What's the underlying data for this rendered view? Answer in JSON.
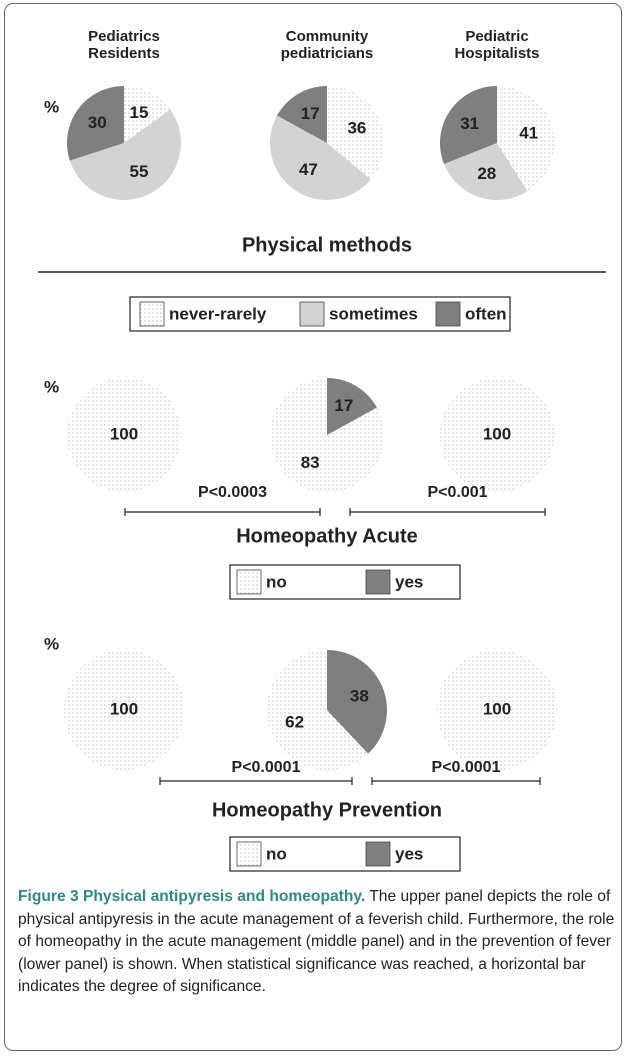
{
  "chart_data": [
    {
      "type": "pie",
      "title": "Physical methods",
      "y_label": "%",
      "categories": [
        "Pediatrics Residents",
        "Community pediatricians",
        "Pediatric Hospitalists"
      ],
      "direction": "clockwise",
      "series": [
        {
          "name": "never-rarely",
          "color": "#ffffff",
          "pattern": "dots",
          "values": [
            15,
            36,
            41
          ]
        },
        {
          "name": "sometimes",
          "color": "#d3d3d3",
          "values": [
            55,
            47,
            28
          ]
        },
        {
          "name": "often",
          "color": "#7f7f7f",
          "values": [
            30,
            17,
            31
          ]
        }
      ]
    },
    {
      "type": "pie",
      "title": "Homeopathy Acute",
      "y_label": "%",
      "direction": "counterclockwise",
      "series": [
        {
          "name": "no",
          "color": "#ffffff",
          "pattern": "dots",
          "values": [
            100,
            83,
            100
          ]
        },
        {
          "name": "yes",
          "color": "#7f7f7f",
          "values": [
            0,
            17,
            0
          ]
        }
      ],
      "annotations": [
        "P<0.0003",
        "P<0.001"
      ]
    },
    {
      "type": "pie",
      "title": "Homeopathy Prevention",
      "y_label": "%",
      "direction": "counterclockwise",
      "series": [
        {
          "name": "no",
          "color": "#ffffff",
          "pattern": "dots",
          "values": [
            100,
            62,
            100
          ]
        },
        {
          "name": "yes",
          "color": "#7f7f7f",
          "values": [
            0,
            38,
            0
          ]
        }
      ],
      "annotations": [
        "P<0.0001",
        "P<0.0001"
      ]
    }
  ],
  "caption": {
    "label": "Figure 3 Physical antipyresis and homeopathy.",
    "text": "The upper panel depicts the role of physical antipyresis in the acute management of a feverish child. Furthermore, the role of homeopathy in the acute management (middle panel) and in the prevention of fever (lower panel) is shown. When statistical significance was reached, a horizontal bar indicates the degree of significance."
  }
}
